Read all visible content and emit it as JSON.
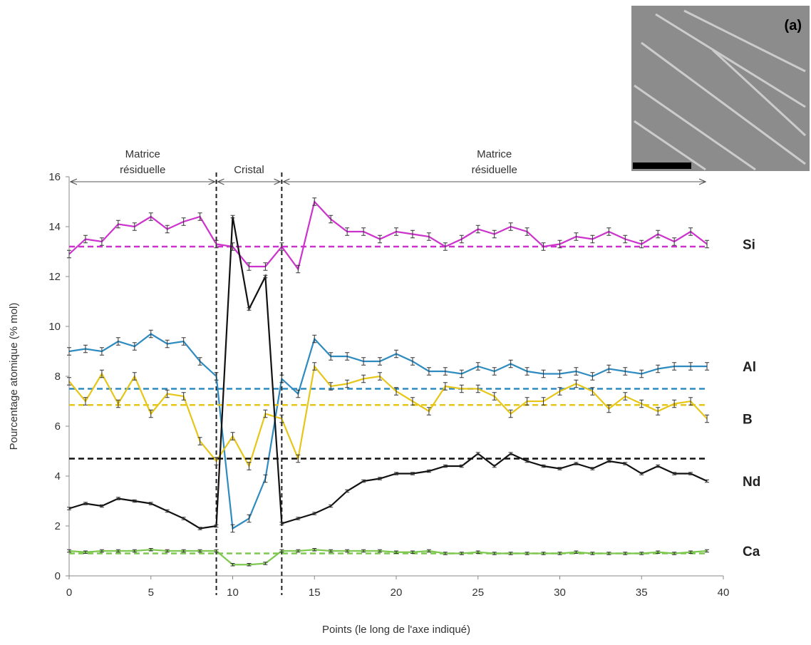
{
  "chart_data": {
    "type": "line",
    "inset_label": "(a)",
    "xlabel": "Points (le long de l'axe indiqué)",
    "ylabel": "Pourcentage atomique (% mol)",
    "x": [
      0,
      1,
      2,
      3,
      4,
      5,
      6,
      7,
      8,
      9,
      10,
      11,
      12,
      13,
      14,
      15,
      16,
      17,
      18,
      19,
      20,
      21,
      22,
      23,
      24,
      25,
      26,
      27,
      28,
      29,
      30,
      31,
      32,
      33,
      34,
      35,
      36,
      37,
      38,
      39
    ],
    "xlim": [
      0,
      40
    ],
    "xticks": [
      0,
      5,
      10,
      15,
      20,
      25,
      30,
      35,
      40
    ],
    "ylim": [
      0,
      16
    ],
    "yticks": [
      0,
      2,
      4,
      6,
      8,
      10,
      12,
      14,
      16
    ],
    "boundaries": [
      9,
      13
    ],
    "regions": [
      {
        "label": "Matrice résiduelle",
        "x": [
          0,
          9
        ]
      },
      {
        "label": "Cristal",
        "x": [
          9,
          13
        ]
      },
      {
        "label": "Matrice résiduelle",
        "x": [
          13,
          39
        ]
      }
    ],
    "series": [
      {
        "name": "Si",
        "color": "#cc33cc",
        "reference": 13.2,
        "error": 0.15,
        "values": [
          12.9,
          13.5,
          13.4,
          14.1,
          14.0,
          14.4,
          13.9,
          14.2,
          14.4,
          13.3,
          13.2,
          12.4,
          12.4,
          13.2,
          12.3,
          15.0,
          14.3,
          13.8,
          13.8,
          13.5,
          13.8,
          13.7,
          13.6,
          13.2,
          13.5,
          13.9,
          13.7,
          14.0,
          13.8,
          13.2,
          13.3,
          13.6,
          13.5,
          13.8,
          13.5,
          13.3,
          13.7,
          13.4,
          13.8,
          13.3
        ]
      },
      {
        "name": "Al",
        "color": "#2e8bc0",
        "reference": 7.5,
        "error": 0.15,
        "values": [
          9.0,
          9.1,
          9.0,
          9.4,
          9.2,
          9.7,
          9.3,
          9.4,
          8.6,
          8.0,
          1.9,
          2.3,
          3.9,
          7.9,
          7.3,
          9.5,
          8.8,
          8.8,
          8.6,
          8.6,
          8.9,
          8.6,
          8.2,
          8.2,
          8.1,
          8.4,
          8.2,
          8.5,
          8.2,
          8.1,
          8.1,
          8.2,
          8.0,
          8.3,
          8.2,
          8.1,
          8.3,
          8.4,
          8.4,
          8.4
        ]
      },
      {
        "name": "B",
        "color": "#e6c619",
        "reference": 6.85,
        "error": 0.15,
        "values": [
          7.8,
          7.0,
          8.1,
          6.9,
          8.0,
          6.5,
          7.3,
          7.2,
          5.4,
          4.6,
          5.6,
          4.4,
          6.5,
          6.3,
          4.7,
          8.4,
          7.6,
          7.7,
          7.9,
          8.0,
          7.4,
          7.0,
          6.6,
          7.6,
          7.5,
          7.5,
          7.2,
          6.5,
          7.0,
          7.0,
          7.4,
          7.7,
          7.4,
          6.7,
          7.2,
          6.9,
          6.6,
          6.9,
          7.0,
          6.3
        ]
      },
      {
        "name": "Nd",
        "color": "#111111",
        "reference": 4.7,
        "error": 0.05,
        "values": [
          2.7,
          2.9,
          2.8,
          3.1,
          3.0,
          2.9,
          2.6,
          2.3,
          1.9,
          2.0,
          14.4,
          10.7,
          12.0,
          2.1,
          2.3,
          2.5,
          2.8,
          3.4,
          3.8,
          3.9,
          4.1,
          4.1,
          4.2,
          4.4,
          4.4,
          4.9,
          4.4,
          4.9,
          4.6,
          4.4,
          4.3,
          4.5,
          4.3,
          4.6,
          4.5,
          4.1,
          4.4,
          4.1,
          4.1,
          3.8
        ]
      },
      {
        "name": "Ca",
        "color": "#7ec850",
        "reference": 0.9,
        "error": 0.05,
        "values": [
          1.0,
          0.95,
          1.0,
          1.0,
          1.0,
          1.05,
          1.0,
          1.0,
          1.0,
          1.0,
          0.45,
          0.45,
          0.5,
          1.0,
          1.0,
          1.05,
          1.0,
          1.0,
          1.0,
          1.0,
          0.95,
          0.95,
          1.0,
          0.9,
          0.9,
          0.95,
          0.9,
          0.9,
          0.9,
          0.9,
          0.9,
          0.95,
          0.9,
          0.9,
          0.9,
          0.9,
          0.95,
          0.9,
          0.95,
          1.0
        ]
      }
    ]
  }
}
